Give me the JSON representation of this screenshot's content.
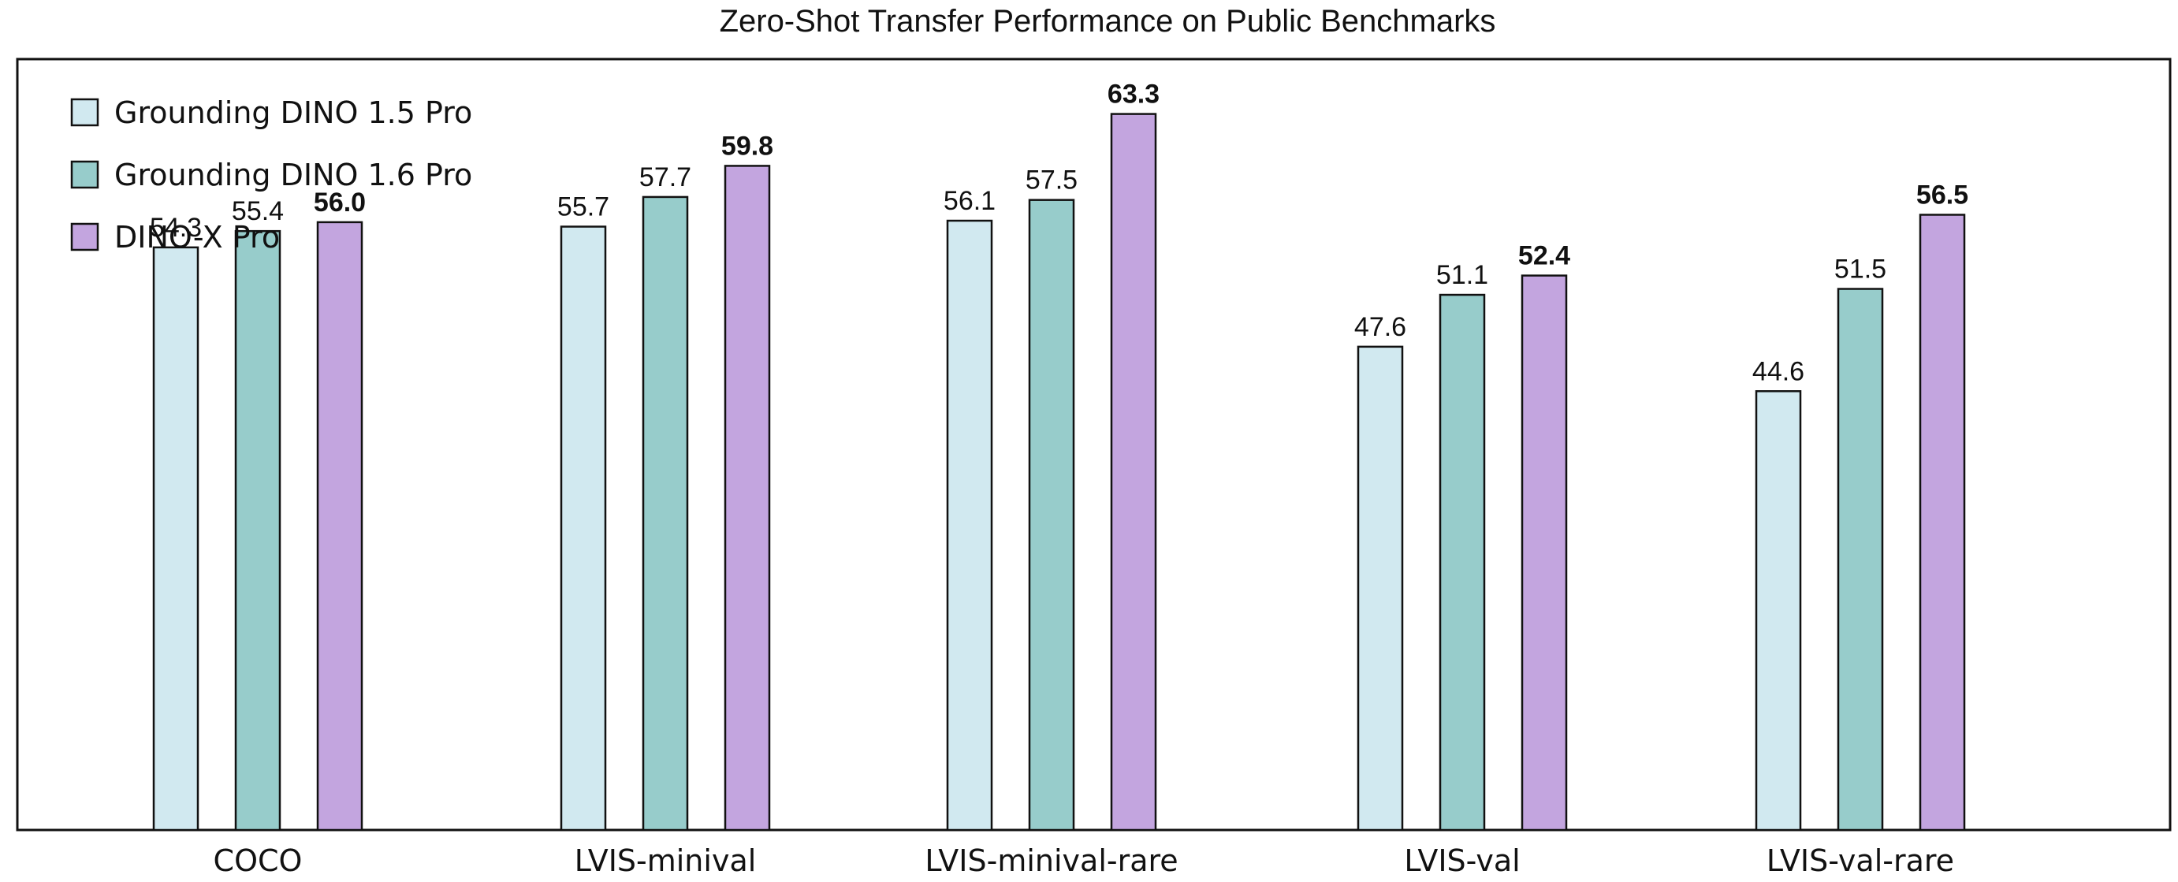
{
  "chart_data": {
    "type": "bar",
    "title": "Zero-Shot Transfer Performance on Public Benchmarks",
    "xlabel": "",
    "ylabel": "",
    "ylim": [
      15,
      67
    ],
    "grid": false,
    "legend_position": "top-left",
    "categories": [
      "COCO",
      "LVIS-minival",
      "LVIS-minival-rare",
      "LVIS-val",
      "LVIS-val-rare"
    ],
    "series": [
      {
        "name": "Grounding DINO 1.5 Pro",
        "color": "#d1e9f0",
        "values": [
          54.3,
          55.7,
          56.1,
          47.6,
          44.6
        ],
        "labels": [
          "54.3",
          "55.7",
          "56.1",
          "47.6",
          "44.6"
        ]
      },
      {
        "name": "Grounding DINO 1.6 Pro",
        "color": "#97cccb",
        "values": [
          55.4,
          57.7,
          57.5,
          51.1,
          51.5
        ],
        "labels": [
          "55.4",
          "57.7",
          "57.5",
          "51.1",
          "51.5"
        ]
      },
      {
        "name": "DINO-X Pro",
        "color": "#c3a5df",
        "values": [
          56.0,
          59.8,
          63.3,
          52.4,
          56.5
        ],
        "labels": [
          "56.0",
          "59.8",
          "63.3",
          "52.4",
          "56.5"
        ],
        "bold_labels": true
      }
    ]
  }
}
